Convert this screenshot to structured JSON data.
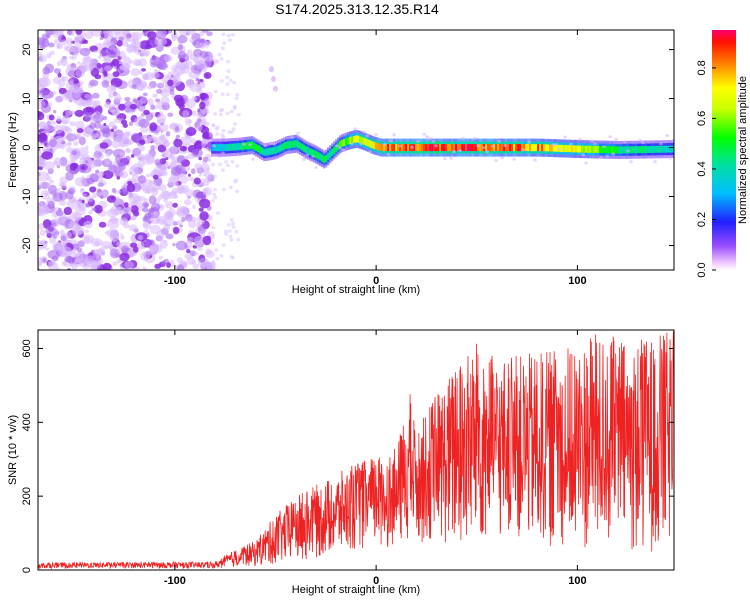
{
  "title": "S174.2025.313.12.35.R14",
  "colors": {
    "snr_line": "#ee2222",
    "noise_dots": "#8a2be2",
    "frame": "#000000"
  },
  "chart_data": [
    {
      "type": "heatmap",
      "xlabel": "Height of straight line (km)",
      "ylabel": "Frequency (Hz)",
      "xlim": [
        -168,
        148
      ],
      "ylim": [
        -25,
        24
      ],
      "x_ticks": [
        {
          "value": -100,
          "label": "-100"
        },
        {
          "value": 0,
          "label": "0"
        },
        {
          "value": 100,
          "label": "100"
        }
      ],
      "y_ticks": [
        {
          "value": 20,
          "label": "20"
        },
        {
          "value": 10,
          "label": "10"
        },
        {
          "value": 0,
          "label": "0"
        },
        {
          "value": -10,
          "label": "-10"
        },
        {
          "value": -20,
          "label": "-20"
        }
      ],
      "noise_region_x": [
        -168,
        -82
      ],
      "signal_track": {
        "x": [
          -82,
          -75,
          -68,
          -62,
          -56,
          -50,
          -45,
          -40,
          -35,
          -30,
          -26,
          -22,
          -18,
          -14,
          -10,
          -6,
          -2,
          2,
          10,
          20,
          40,
          60,
          80,
          100,
          120,
          148
        ],
        "freq": [
          0,
          0,
          0.2,
          0.5,
          -1,
          -0.5,
          0.5,
          0.8,
          -0.5,
          -1.5,
          -2.5,
          -0.8,
          0.8,
          1.4,
          1.8,
          1.2,
          0.5,
          0,
          0,
          0,
          0,
          0,
          0,
          -0.3,
          -0.5,
          -0.3
        ],
        "amplitude": [
          0.35,
          0.4,
          0.45,
          0.55,
          0.45,
          0.45,
          0.5,
          0.5,
          0.45,
          0.5,
          0.5,
          0.5,
          0.55,
          0.65,
          0.75,
          0.75,
          0.75,
          0.85,
          0.9,
          0.95,
          0.92,
          0.9,
          0.85,
          0.7,
          0.5,
          0.4
        ]
      },
      "colorbar": {
        "label": "Normalized spectral amplitude",
        "range": [
          0.0,
          0.95
        ],
        "ticks": [
          {
            "value": 0.0,
            "label": "0.0"
          },
          {
            "value": 0.2,
            "label": "0.2"
          },
          {
            "value": 0.4,
            "label": "0.4"
          },
          {
            "value": 0.6,
            "label": "0.6"
          },
          {
            "value": 0.8,
            "label": "0.8"
          }
        ]
      }
    },
    {
      "type": "line",
      "xlabel": "Height of straight line (km)",
      "ylabel": "SNR (10 * v/v)",
      "xlim": [
        -168,
        148
      ],
      "ylim": [
        0,
        650
      ],
      "x_ticks": [
        {
          "value": -100,
          "label": "-100"
        },
        {
          "value": 0,
          "label": "0"
        },
        {
          "value": 100,
          "label": "100"
        }
      ],
      "y_ticks": [
        {
          "value": 0,
          "label": "0"
        },
        {
          "value": 200,
          "label": "200"
        },
        {
          "value": 400,
          "label": "400"
        },
        {
          "value": 600,
          "label": "600"
        }
      ],
      "envelope": {
        "x": [
          -168,
          -100,
          -80,
          -75,
          -70,
          -60,
          -50,
          -40,
          -30,
          -20,
          -10,
          0,
          10,
          17,
          20,
          30,
          40,
          50,
          60,
          70,
          80,
          90,
          100,
          110,
          120,
          130,
          140,
          148
        ],
        "upper": [
          20,
          22,
          22,
          40,
          55,
          80,
          150,
          200,
          230,
          260,
          290,
          310,
          330,
          480,
          380,
          480,
          560,
          620,
          570,
          580,
          590,
          600,
          620,
          640,
          630,
          620,
          640,
          650
        ],
        "lower": [
          5,
          5,
          5,
          5,
          8,
          10,
          15,
          20,
          30,
          40,
          50,
          60,
          60,
          80,
          70,
          80,
          40,
          60,
          80,
          80,
          60,
          60,
          40,
          60,
          50,
          40,
          50,
          60
        ]
      }
    }
  ]
}
